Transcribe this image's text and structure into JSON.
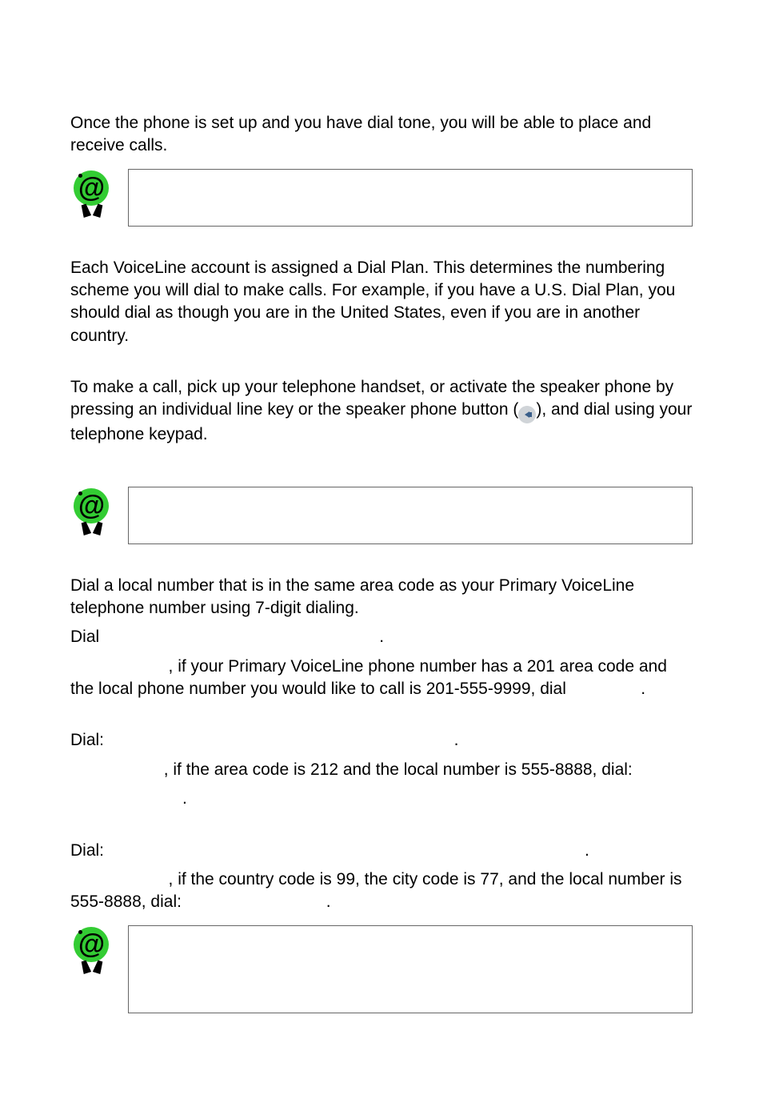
{
  "intro": "Once the phone is set up and you have dial tone, you will be able to place and receive calls.",
  "dialplan": "Each VoiceLine account is assigned a Dial Plan.  This determines the numbering scheme you will dial to make calls.  For example, if you have a U.S. Dial Plan, you should dial as though you are in the United States, even if you are in another country.",
  "makecall_pre": "To make a call, pick up your telephone handset, or activate the speaker phone by pressing an individual line key or the speaker phone button (",
  "makecall_post": "), and dial using your telephone keypad.",
  "local1": "Dial a local number that is in the same area code as your Primary VoiceLine telephone number using 7-digit dialing.",
  "local_dial_line": "Dial                                                            .",
  "local_example": "                     , if your Primary VoiceLine phone number has a 201 area code and the local phone number you would like to call is 201-555-9999, dial                .",
  "dial2_line": "Dial:                                                                           .",
  "dial2_example": "                    , if the area code is 212 and the local number is 555-8888, dial:",
  "dial2_trail": "                        .",
  "dial3_line": "Dial:                                                                                                       .",
  "dial3_example": "                     , if the country code is 99, the city code is 77, and the local number is 555-8888, dial:                               ."
}
